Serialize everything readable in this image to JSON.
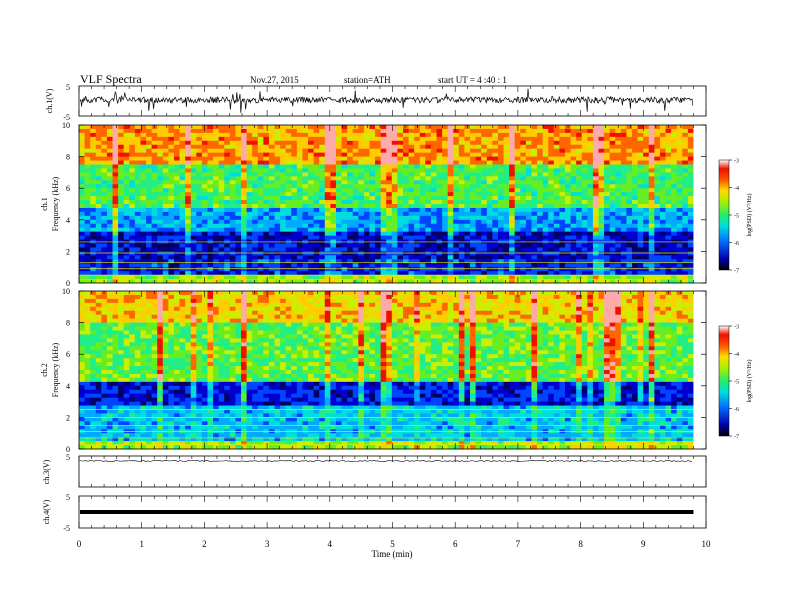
{
  "header": {
    "title": "VLF  Spectra",
    "date": "Nov.27, 2015",
    "station": "station=ATH",
    "start": "start  UT  =   4  :40 : 1"
  },
  "chart_data": [
    {
      "type": "line",
      "ylabel": "ch.1(V)",
      "ylim": [
        -5,
        5
      ],
      "yticks": [
        "5",
        "-5"
      ],
      "xlim": [
        0,
        10
      ],
      "recording_end_min": 9.8,
      "trace_color": "#000000"
    },
    {
      "type": "heatmap",
      "ylabel": "Frequency  (kHz)",
      "channel": "ch.1",
      "ylim": [
        0,
        10
      ],
      "yticks": [
        "0",
        "2",
        "4",
        "6",
        "8",
        "10"
      ],
      "xlim": [
        0,
        10
      ],
      "colorbar": {
        "label": "log(PSD) (V²/Hz)",
        "range": [
          -7,
          -3
        ],
        "ticks": [
          "-3",
          "-4",
          "-5",
          "-6",
          "-7"
        ]
      }
    },
    {
      "type": "heatmap",
      "ylabel": "Frequency  (kHz)",
      "channel": "ch.2",
      "ylim": [
        0,
        10
      ],
      "yticks": [
        "0",
        "2",
        "4",
        "6",
        "8",
        "10"
      ],
      "xlim": [
        0,
        10
      ],
      "colorbar": {
        "label": "log(PSD) (V²/Hz)",
        "range": [
          -7,
          -3
        ],
        "ticks": [
          "-3",
          "-4",
          "-5",
          "-6",
          "-7"
        ]
      }
    },
    {
      "type": "line",
      "ylabel": "ch.3(V)",
      "ylim": [
        -5,
        5
      ],
      "yticks": [
        "5"
      ],
      "xlim": [
        0,
        10
      ]
    },
    {
      "type": "line",
      "ylabel": "ch.4(V)",
      "ylim": [
        -5,
        5
      ],
      "yticks": [
        "5",
        "-5"
      ],
      "xlim": [
        0,
        10
      ]
    }
  ],
  "xaxis": {
    "label": "Time  (min)",
    "ticks": [
      "0",
      "1",
      "2",
      "3",
      "4",
      "5",
      "6",
      "7",
      "8",
      "9",
      "10"
    ]
  },
  "colors": {
    "colormap": [
      "#000066",
      "#0000cc",
      "#0044ff",
      "#00aaff",
      "#00dddd",
      "#22ee88",
      "#66ee22",
      "#ccee00",
      "#ffcc00",
      "#ff6600",
      "#ee1100",
      "#ffaaaa"
    ]
  }
}
